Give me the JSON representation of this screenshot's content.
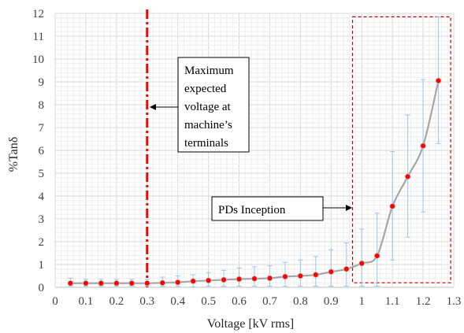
{
  "chart_data": {
    "type": "line",
    "xlabel": "Voltage [kV rms]",
    "ylabel": "%Tanδ",
    "xlim": [
      0,
      1.3
    ],
    "ylim": [
      0,
      12
    ],
    "x_ticks": [
      "0",
      "0.1",
      "0.2",
      "0.3",
      "0.4",
      "0.5",
      "0.6",
      "0.7",
      "0.8",
      "0.9",
      "1",
      "1.1",
      "1.2",
      "1.3"
    ],
    "y_ticks": [
      "0",
      "1",
      "2",
      "3",
      "4",
      "5",
      "6",
      "7",
      "8",
      "9",
      "10",
      "11",
      "12"
    ],
    "grid": true,
    "series": [
      {
        "x": [
          0.05,
          0.1,
          0.15,
          0.2,
          0.25,
          0.3,
          0.35,
          0.4,
          0.45,
          0.5,
          0.55,
          0.6,
          0.65,
          0.7,
          0.75,
          0.8,
          0.85,
          0.9,
          0.95,
          1.0,
          1.05,
          1.1,
          1.15,
          1.2,
          1.25
        ],
        "values": [
          0.18,
          0.18,
          0.18,
          0.18,
          0.18,
          0.18,
          0.2,
          0.22,
          0.27,
          0.3,
          0.33,
          0.36,
          0.38,
          0.4,
          0.47,
          0.5,
          0.55,
          0.68,
          0.8,
          1.05,
          1.38,
          3.55,
          4.85,
          6.2,
          9.05
        ],
        "error_low": [
          0.05,
          0.05,
          0.05,
          0.05,
          0.05,
          0.05,
          0.05,
          0.05,
          0.02,
          0.05,
          0.05,
          0.05,
          0.05,
          0.05,
          0.05,
          0.05,
          0.05,
          0.05,
          0.05,
          0.05,
          0.05,
          1.2,
          2.2,
          3.3,
          6.3
        ],
        "error_high": [
          0.4,
          0.35,
          0.35,
          0.35,
          0.35,
          0.35,
          0.45,
          0.5,
          0.55,
          0.65,
          0.75,
          0.85,
          0.9,
          0.95,
          1.1,
          1.2,
          1.35,
          1.65,
          1.95,
          2.55,
          3.25,
          5.95,
          7.55,
          9.1,
          11.85
        ],
        "color": "#a6a6a6",
        "marker_color": "#ff0000",
        "error_bar_color": "#9dc3e6"
      }
    ],
    "reference_line": {
      "x": 0.3,
      "color": "#ff0000",
      "style": "dash-dot"
    },
    "inception_box": {
      "x_range": [
        0.97,
        1.29
      ],
      "y_range": [
        0.2,
        11.85
      ],
      "color": "#c00000",
      "style": "dashed"
    },
    "annotations": [
      {
        "id": "max-voltage",
        "lines": [
          "Maximum",
          "expected",
          "voltage at",
          "machine’s",
          "terminals"
        ]
      },
      {
        "id": "pd-inception",
        "lines": [
          "PDs Inception"
        ]
      }
    ]
  }
}
